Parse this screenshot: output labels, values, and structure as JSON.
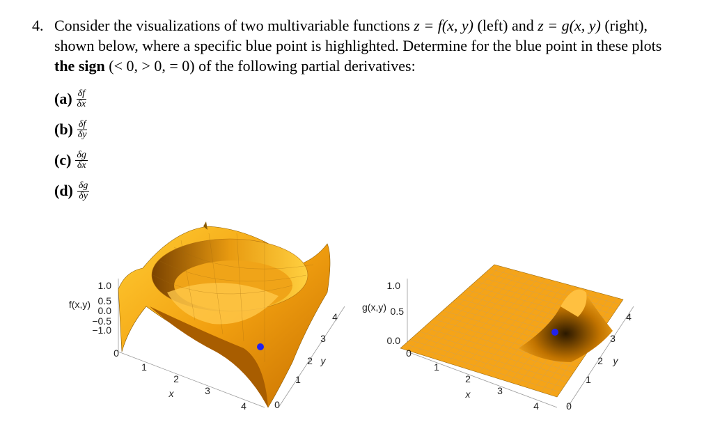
{
  "question": {
    "number": "4.",
    "parts": [
      "Consider the visualizations of two multivariable functions ",
      "z = f(x, y)",
      " (left) and ",
      "z = g(x, y)",
      " (right), shown below, where a specific blue point is highlighted. Determine for the blue point in these plots ",
      "the sign",
      " ",
      "(< 0, > 0, = 0)",
      " of the following partial derivatives:"
    ]
  },
  "items": [
    {
      "label": "(a)",
      "numerator": "δf",
      "denominator": "δx"
    },
    {
      "label": "(b)",
      "numerator": "δf",
      "denominator": "δy"
    },
    {
      "label": "(c)",
      "numerator": "δg",
      "denominator": "δx"
    },
    {
      "label": "(d)",
      "numerator": "δg",
      "denominator": "δy"
    }
  ],
  "plots": [
    {
      "z_label": "f(x,y)",
      "z_ticks": [
        "1.0",
        "0.5",
        "0.0",
        "−0.5",
        "−1.0"
      ],
      "x_label": "x",
      "x_ticks": [
        "0",
        "1",
        "2",
        "3",
        "4"
      ],
      "y_label": "y",
      "y_ticks": [
        "0",
        "1",
        "2",
        "3",
        "4"
      ]
    },
    {
      "z_label": "g(x,y)",
      "z_ticks": [
        "1.0",
        "0.5",
        "0.0"
      ],
      "x_label": "x",
      "x_ticks": [
        "0",
        "1",
        "2",
        "3",
        "4"
      ],
      "y_label": "y",
      "y_ticks": [
        "0",
        "1",
        "2",
        "3",
        "4"
      ]
    }
  ]
}
